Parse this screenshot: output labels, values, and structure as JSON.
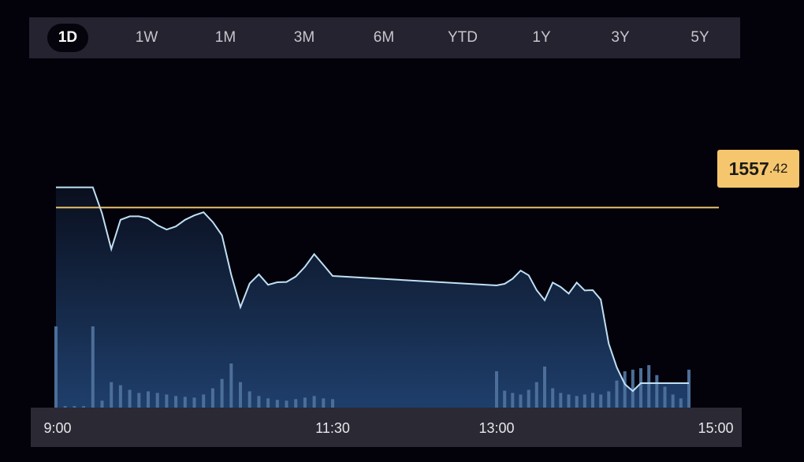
{
  "range_selector": {
    "tabs": [
      "1D",
      "1W",
      "1M",
      "3M",
      "6M",
      "YTD",
      "1Y",
      "3Y",
      "5Y"
    ],
    "active": "1D"
  },
  "price_label": {
    "integer": "1557",
    "decimal": ".42"
  },
  "colors": {
    "line": "#bfe0f4",
    "reference_line": "#e7c06b",
    "price_tag": "#f5c66e",
    "volume": "#4c6f9a",
    "area_top": "#0a0f1e",
    "area_bottom": "#1f3f6c"
  },
  "chart_data": {
    "type": "area",
    "xlabel": "",
    "ylabel": "",
    "x_ticks": [
      "9:00",
      "11:30",
      "13:00",
      "15:00"
    ],
    "reference_price": 1557.42,
    "ylim": [
      1551,
      1560
    ],
    "price_series": {
      "x": [
        "9:00",
        "9:05",
        "9:10",
        "9:15",
        "9:20",
        "9:25",
        "9:30",
        "9:35",
        "9:40",
        "9:45",
        "9:50",
        "9:55",
        "10:00",
        "10:05",
        "10:10",
        "10:15",
        "10:20",
        "10:25",
        "10:30",
        "10:35",
        "10:40",
        "10:45",
        "10:50",
        "10:55",
        "11:00",
        "11:05",
        "11:10",
        "11:15",
        "11:20",
        "11:25",
        "11:30",
        "13:00",
        "13:05",
        "13:10",
        "13:15",
        "13:20",
        "13:25",
        "13:30",
        "13:35",
        "13:40",
        "13:45",
        "13:50",
        "13:55",
        "14:00",
        "14:05",
        "14:10",
        "14:15",
        "14:20",
        "14:25",
        "14:30",
        "14:35",
        "14:40",
        "14:45",
        "14:50",
        "14:55",
        "15:00"
      ],
      "values": [
        1558.06,
        1558.06,
        1558.06,
        1558.06,
        1558.06,
        1557.23,
        1556.1,
        1557.03,
        1557.14,
        1557.14,
        1557.07,
        1556.86,
        1556.72,
        1556.82,
        1557.03,
        1557.17,
        1557.27,
        1556.96,
        1556.54,
        1555.29,
        1554.26,
        1555.01,
        1555.3,
        1554.97,
        1555.05,
        1555.06,
        1555.23,
        1555.54,
        1555.94,
        1555.6,
        1555.25,
        1554.95,
        1555.0,
        1555.16,
        1555.42,
        1555.27,
        1554.8,
        1554.48,
        1555.04,
        1554.9,
        1554.69,
        1555.04,
        1554.79,
        1554.8,
        1554.5,
        1553.1,
        1552.35,
        1551.82,
        1551.6,
        1551.85,
        1551.85,
        1551.85,
        1551.85,
        1551.85,
        1551.85,
        1551.85
      ],
      "flat_segment": {
        "from": "11:30",
        "to": "13:00",
        "value": 1554.95
      }
    },
    "volume_series": {
      "x": [
        "9:00",
        "9:05",
        "9:10",
        "9:15",
        "9:20",
        "9:25",
        "9:30",
        "9:35",
        "9:40",
        "9:45",
        "9:50",
        "9:55",
        "10:00",
        "10:05",
        "10:10",
        "10:15",
        "10:20",
        "10:25",
        "10:30",
        "10:35",
        "10:40",
        "10:45",
        "10:50",
        "10:55",
        "11:00",
        "11:05",
        "11:10",
        "11:15",
        "11:20",
        "11:25",
        "11:30",
        "13:00",
        "13:05",
        "13:10",
        "13:15",
        "13:20",
        "13:25",
        "13:30",
        "13:35",
        "13:40",
        "13:45",
        "13:50",
        "13:55",
        "14:00",
        "14:05",
        "14:10",
        "14:15",
        "14:20",
        "14:25",
        "14:30",
        "14:35",
        "14:40",
        "14:45",
        "14:50",
        "14:55",
        "15:00"
      ],
      "values": [
        108,
        5,
        5,
        5,
        108,
        12,
        36,
        32,
        26,
        22,
        24,
        22,
        20,
        18,
        17,
        16,
        20,
        28,
        40,
        60,
        36,
        24,
        18,
        15,
        13,
        12,
        14,
        16,
        18,
        15,
        14,
        50,
        25,
        22,
        20,
        26,
        36,
        56,
        28,
        22,
        20,
        18,
        20,
        22,
        20,
        24,
        38,
        50,
        52,
        54,
        58,
        45,
        30,
        20,
        15,
        52
      ]
    }
  }
}
